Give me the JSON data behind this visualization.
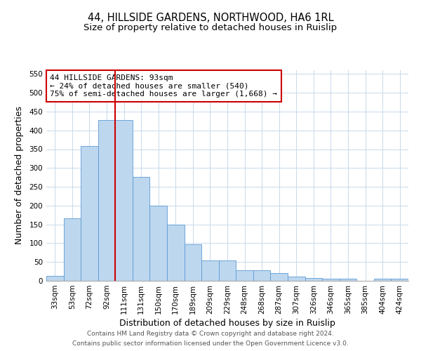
{
  "title": "44, HILLSIDE GARDENS, NORTHWOOD, HA6 1RL",
  "subtitle": "Size of property relative to detached houses in Ruislip",
  "xlabel": "Distribution of detached houses by size in Ruislip",
  "ylabel": "Number of detached properties",
  "bar_labels": [
    "33sqm",
    "53sqm",
    "72sqm",
    "92sqm",
    "111sqm",
    "131sqm",
    "150sqm",
    "170sqm",
    "189sqm",
    "209sqm",
    "229sqm",
    "248sqm",
    "268sqm",
    "287sqm",
    "307sqm",
    "326sqm",
    "346sqm",
    "365sqm",
    "385sqm",
    "404sqm",
    "424sqm"
  ],
  "bar_heights": [
    14,
    167,
    358,
    428,
    428,
    277,
    200,
    149,
    97,
    55,
    55,
    28,
    28,
    20,
    12,
    7,
    5,
    5,
    0,
    5,
    5
  ],
  "bar_color": "#bdd7ee",
  "bar_edge_color": "#5b9bd5",
  "ylim": [
    0,
    560
  ],
  "yticks": [
    0,
    50,
    100,
    150,
    200,
    250,
    300,
    350,
    400,
    450,
    500,
    550
  ],
  "vline_x_index": 3,
  "vline_color": "#cc0000",
  "annotation_title": "44 HILLSIDE GARDENS: 93sqm",
  "annotation_line1": "← 24% of detached houses are smaller (540)",
  "annotation_line2": "75% of semi-detached houses are larger (1,668) →",
  "annotation_box_color": "#cc0000",
  "footer_line1": "Contains HM Land Registry data © Crown copyright and database right 2024.",
  "footer_line2": "Contains public sector information licensed under the Open Government Licence v3.0.",
  "background_color": "#ffffff",
  "grid_color": "#c8d9ea",
  "title_fontsize": 10.5,
  "subtitle_fontsize": 9.5,
  "axis_label_fontsize": 9,
  "tick_fontsize": 7.5,
  "annotation_fontsize": 8,
  "footer_fontsize": 6.5
}
